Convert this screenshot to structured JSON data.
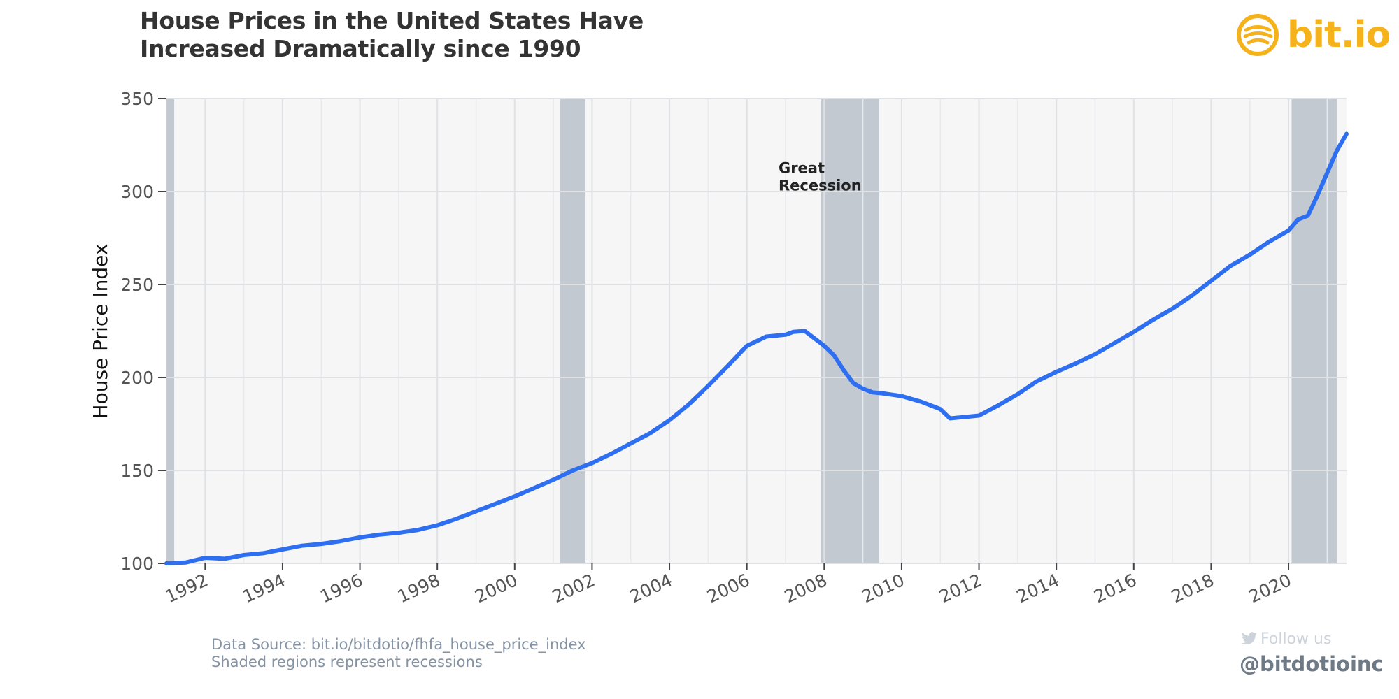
{
  "title_lines": [
    "House Prices in the United States Have",
    "Increased Dramatically since 1990"
  ],
  "logo": {
    "text": "bit.io",
    "icon": "bitio-logo-icon",
    "color": "#f6b21a"
  },
  "footer": {
    "source": "Data Source: bit.io/bitdotio/fhfa_house_price_index",
    "note": "Shaded regions represent recessions"
  },
  "social": {
    "follow": "Follow us",
    "icon": "twitter-bird-icon",
    "handle": "@bitdotioinc"
  },
  "chart_data": {
    "type": "line",
    "title": "",
    "xlabel": "",
    "ylabel": "House Price Index",
    "xlim": [
      1991.0,
      2021.5
    ],
    "ylim": [
      100,
      350
    ],
    "grid": true,
    "x_ticks": [
      "1992",
      "1994",
      "1996",
      "1998",
      "2000",
      "2002",
      "2004",
      "2006",
      "2008",
      "2010",
      "2012",
      "2014",
      "2016",
      "2018",
      "2020"
    ],
    "y_ticks": [
      "100",
      "150",
      "200",
      "250",
      "300",
      "350"
    ],
    "annotation": {
      "text": [
        "Great",
        "Recession"
      ],
      "x": 2007.0,
      "y": 310
    },
    "recessions": [
      {
        "start": 1991.0,
        "end": 1991.2
      },
      {
        "start": 2001.17,
        "end": 2001.83
      },
      {
        "start": 2007.92,
        "end": 2009.42
      },
      {
        "start": 2020.08,
        "end": 2021.25
      }
    ],
    "series": [
      {
        "color": "#2e6ff2",
        "x": [
          1991.0,
          1991.5,
          1992.0,
          1992.5,
          1993.0,
          1993.5,
          1994.0,
          1994.5,
          1995.0,
          1995.5,
          1996.0,
          1996.5,
          1997.0,
          1997.5,
          1998.0,
          1998.5,
          1999.0,
          1999.5,
          2000.0,
          2000.5,
          2001.0,
          2001.5,
          2002.0,
          2002.5,
          2003.0,
          2003.5,
          2004.0,
          2004.5,
          2005.0,
          2005.5,
          2006.0,
          2006.5,
          2007.0,
          2007.2,
          2007.5,
          2008.0,
          2008.25,
          2008.5,
          2008.75,
          2009.0,
          2009.25,
          2009.5,
          2010.0,
          2010.5,
          2011.0,
          2011.25,
          2011.5,
          2011.75,
          2012.0,
          2012.5,
          2013.0,
          2013.5,
          2014.0,
          2014.5,
          2015.0,
          2015.5,
          2016.0,
          2016.5,
          2017.0,
          2017.5,
          2018.0,
          2018.5,
          2019.0,
          2019.5,
          2020.0,
          2020.25,
          2020.5,
          2020.75,
          2021.0,
          2021.25,
          2021.5
        ],
        "values": [
          100,
          100.5,
          103,
          102.5,
          104.5,
          105.5,
          107.5,
          109.5,
          110.5,
          112,
          114,
          115.5,
          116.5,
          118,
          120.5,
          124,
          128,
          132,
          136,
          140.5,
          145,
          150,
          154,
          159,
          164.5,
          170,
          177,
          185.5,
          195.5,
          206,
          217,
          222,
          223,
          224.5,
          225,
          217,
          212,
          204,
          197,
          194,
          192,
          191.5,
          190,
          187,
          183,
          178,
          178.5,
          179,
          179.5,
          185,
          191,
          198,
          203,
          207.5,
          212.5,
          218.5,
          224.5,
          231,
          237,
          244,
          252,
          260,
          266,
          273,
          279,
          285,
          287,
          298,
          310,
          322,
          331
        ]
      }
    ]
  }
}
